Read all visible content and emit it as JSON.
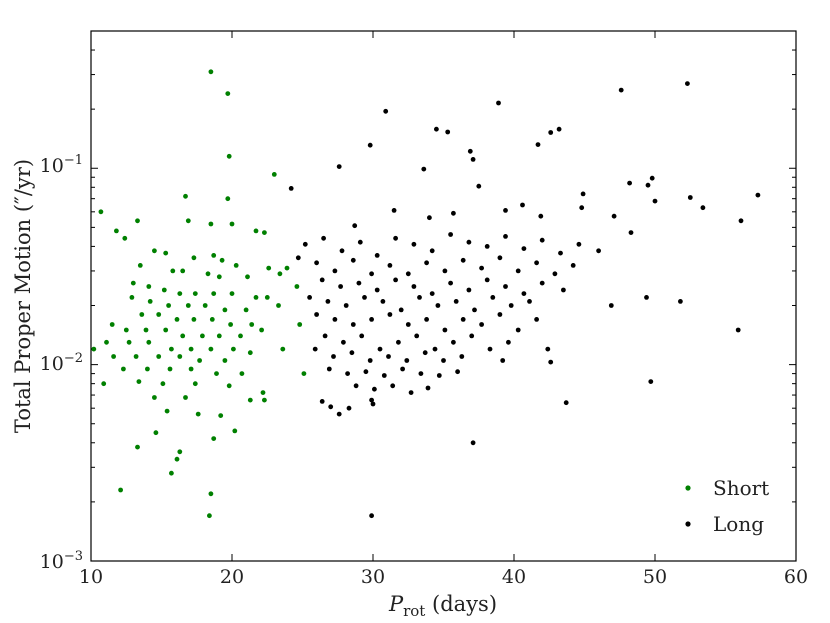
{
  "chart_data": {
    "type": "scatter",
    "title": "",
    "xlabel_main": "P",
    "xlabel_sub": "rot",
    "xlabel_unit": " (days)",
    "ylabel": "Total Proper Motion (″/yr)",
    "xlim": [
      10,
      60
    ],
    "ylim": [
      0.001,
      0.5
    ],
    "yscale": "log",
    "grid": false,
    "legend_position": "lower-right",
    "x_ticks": [
      10,
      20,
      30,
      40,
      50,
      60
    ],
    "x_tick_labels": [
      "10",
      "20",
      "30",
      "40",
      "50",
      "60"
    ],
    "y_ticks": [
      0.001,
      0.01,
      0.1
    ],
    "y_tick_labels": [
      {
        "base": "10",
        "exp": "−3"
      },
      {
        "base": "10",
        "exp": "−2"
      },
      {
        "base": "10",
        "exp": "−1"
      }
    ],
    "series": [
      {
        "name": "Short",
        "color": "#008000",
        "points": [
          [
            18.5,
            0.31
          ],
          [
            19.7,
            0.24
          ],
          [
            19.8,
            0.115
          ],
          [
            16.7,
            0.072
          ],
          [
            19.7,
            0.07
          ],
          [
            23.0,
            0.093
          ],
          [
            10.7,
            0.06
          ],
          [
            11.8,
            0.048
          ],
          [
            12.4,
            0.044
          ],
          [
            13.3,
            0.054
          ],
          [
            16.9,
            0.054
          ],
          [
            18.5,
            0.052
          ],
          [
            20.0,
            0.052
          ],
          [
            21.7,
            0.048
          ],
          [
            22.3,
            0.047
          ],
          [
            14.5,
            0.038
          ],
          [
            15.3,
            0.037
          ],
          [
            17.3,
            0.035
          ],
          [
            18.7,
            0.036
          ],
          [
            19.3,
            0.034
          ],
          [
            20.3,
            0.032
          ],
          [
            13.5,
            0.032
          ],
          [
            15.8,
            0.03
          ],
          [
            16.5,
            0.03
          ],
          [
            18.3,
            0.029
          ],
          [
            19.1,
            0.028
          ],
          [
            21.1,
            0.028
          ],
          [
            22.6,
            0.031
          ],
          [
            23.4,
            0.029
          ],
          [
            23.9,
            0.031
          ],
          [
            13.0,
            0.026
          ],
          [
            14.1,
            0.025
          ],
          [
            15.2,
            0.024
          ],
          [
            16.3,
            0.023
          ],
          [
            17.4,
            0.023
          ],
          [
            18.7,
            0.023
          ],
          [
            20.0,
            0.023
          ],
          [
            21.7,
            0.022
          ],
          [
            22.5,
            0.022
          ],
          [
            24.6,
            0.025
          ],
          [
            12.9,
            0.022
          ],
          [
            14.2,
            0.021
          ],
          [
            15.5,
            0.02
          ],
          [
            16.9,
            0.02
          ],
          [
            18.1,
            0.02
          ],
          [
            19.5,
            0.019
          ],
          [
            21.0,
            0.019
          ],
          [
            23.3,
            0.02
          ],
          [
            13.6,
            0.018
          ],
          [
            14.8,
            0.018
          ],
          [
            16.1,
            0.017
          ],
          [
            17.3,
            0.017
          ],
          [
            18.6,
            0.017
          ],
          [
            19.9,
            0.016
          ],
          [
            21.4,
            0.016
          ],
          [
            11.5,
            0.016
          ],
          [
            12.5,
            0.015
          ],
          [
            13.9,
            0.015
          ],
          [
            15.3,
            0.015
          ],
          [
            16.5,
            0.014
          ],
          [
            17.9,
            0.014
          ],
          [
            19.1,
            0.014
          ],
          [
            20.6,
            0.014
          ],
          [
            22.1,
            0.015
          ],
          [
            24.8,
            0.016
          ],
          [
            11.1,
            0.013
          ],
          [
            12.7,
            0.013
          ],
          [
            14.1,
            0.013
          ],
          [
            15.7,
            0.012
          ],
          [
            17.1,
            0.012
          ],
          [
            18.5,
            0.012
          ],
          [
            20.1,
            0.012
          ],
          [
            23.6,
            0.012
          ],
          [
            10.2,
            0.012
          ],
          [
            11.6,
            0.011
          ],
          [
            13.2,
            0.011
          ],
          [
            14.8,
            0.011
          ],
          [
            16.3,
            0.011
          ],
          [
            17.7,
            0.0105
          ],
          [
            19.5,
            0.0105
          ],
          [
            21.3,
            0.0115
          ],
          [
            12.3,
            0.0095
          ],
          [
            14.0,
            0.0095
          ],
          [
            15.6,
            0.0095
          ],
          [
            17.1,
            0.0095
          ],
          [
            18.9,
            0.009
          ],
          [
            20.7,
            0.009
          ],
          [
            25.1,
            0.009
          ],
          [
            10.9,
            0.008
          ],
          [
            13.4,
            0.0082
          ],
          [
            15.1,
            0.008
          ],
          [
            17.4,
            0.008
          ],
          [
            19.8,
            0.0078
          ],
          [
            22.2,
            0.0072
          ],
          [
            14.5,
            0.0068
          ],
          [
            16.7,
            0.0068
          ],
          [
            21.3,
            0.0066
          ],
          [
            22.3,
            0.0066
          ],
          [
            15.4,
            0.0058
          ],
          [
            17.6,
            0.0056
          ],
          [
            19.2,
            0.0055
          ],
          [
            20.2,
            0.0046
          ],
          [
            14.6,
            0.0045
          ],
          [
            18.7,
            0.0042
          ],
          [
            13.3,
            0.0038
          ],
          [
            16.3,
            0.0036
          ],
          [
            16.1,
            0.0033
          ],
          [
            15.7,
            0.0028
          ],
          [
            12.1,
            0.0023
          ],
          [
            18.5,
            0.0022
          ],
          [
            18.4,
            0.0017
          ]
        ]
      },
      {
        "name": "Long",
        "color": "#000000",
        "points": [
          [
            52.3,
            0.27
          ],
          [
            47.6,
            0.25
          ],
          [
            38.9,
            0.215
          ],
          [
            30.9,
            0.195
          ],
          [
            34.5,
            0.158
          ],
          [
            35.3,
            0.153
          ],
          [
            43.2,
            0.158
          ],
          [
            42.6,
            0.152
          ],
          [
            36.9,
            0.122
          ],
          [
            29.8,
            0.131
          ],
          [
            41.7,
            0.132
          ],
          [
            37.1,
            0.111
          ],
          [
            27.6,
            0.102
          ],
          [
            33.6,
            0.099
          ],
          [
            49.8,
            0.089
          ],
          [
            49.5,
            0.082
          ],
          [
            48.2,
            0.084
          ],
          [
            44.9,
            0.074
          ],
          [
            37.5,
            0.081
          ],
          [
            24.2,
            0.079
          ],
          [
            52.5,
            0.071
          ],
          [
            57.3,
            0.073
          ],
          [
            50.0,
            0.068
          ],
          [
            53.4,
            0.063
          ],
          [
            40.6,
            0.065
          ],
          [
            35.7,
            0.059
          ],
          [
            31.5,
            0.061
          ],
          [
            28.7,
            0.051
          ],
          [
            34.0,
            0.056
          ],
          [
            39.4,
            0.061
          ],
          [
            41.9,
            0.057
          ],
          [
            44.8,
            0.063
          ],
          [
            47.1,
            0.057
          ],
          [
            48.3,
            0.047
          ],
          [
            56.1,
            0.054
          ],
          [
            25.2,
            0.041
          ],
          [
            26.5,
            0.044
          ],
          [
            27.8,
            0.038
          ],
          [
            29.1,
            0.042
          ],
          [
            30.3,
            0.036
          ],
          [
            31.6,
            0.044
          ],
          [
            32.9,
            0.041
          ],
          [
            34.2,
            0.038
          ],
          [
            35.5,
            0.046
          ],
          [
            36.8,
            0.042
          ],
          [
            38.1,
            0.04
          ],
          [
            39.4,
            0.045
          ],
          [
            40.7,
            0.039
          ],
          [
            42.0,
            0.043
          ],
          [
            43.3,
            0.037
          ],
          [
            44.6,
            0.041
          ],
          [
            46.0,
            0.038
          ],
          [
            24.7,
            0.035
          ],
          [
            26.0,
            0.033
          ],
          [
            27.3,
            0.03
          ],
          [
            28.6,
            0.034
          ],
          [
            29.9,
            0.029
          ],
          [
            31.2,
            0.032
          ],
          [
            32.5,
            0.029
          ],
          [
            33.8,
            0.033
          ],
          [
            35.1,
            0.03
          ],
          [
            36.4,
            0.034
          ],
          [
            37.7,
            0.031
          ],
          [
            39.0,
            0.035
          ],
          [
            40.3,
            0.03
          ],
          [
            41.6,
            0.033
          ],
          [
            42.9,
            0.029
          ],
          [
            44.2,
            0.032
          ],
          [
            26.4,
            0.027
          ],
          [
            27.7,
            0.025
          ],
          [
            29.0,
            0.026
          ],
          [
            30.3,
            0.024
          ],
          [
            31.6,
            0.027
          ],
          [
            32.9,
            0.025
          ],
          [
            34.2,
            0.023
          ],
          [
            35.5,
            0.026
          ],
          [
            36.8,
            0.024
          ],
          [
            38.1,
            0.027
          ],
          [
            39.4,
            0.025
          ],
          [
            40.7,
            0.023
          ],
          [
            42.0,
            0.026
          ],
          [
            43.5,
            0.024
          ],
          [
            25.5,
            0.022
          ],
          [
            26.8,
            0.021
          ],
          [
            28.1,
            0.02
          ],
          [
            29.4,
            0.022
          ],
          [
            30.7,
            0.021
          ],
          [
            32.0,
            0.019
          ],
          [
            33.3,
            0.022
          ],
          [
            34.6,
            0.02
          ],
          [
            35.9,
            0.021
          ],
          [
            37.2,
            0.019
          ],
          [
            38.5,
            0.022
          ],
          [
            39.8,
            0.02
          ],
          [
            41.1,
            0.021
          ],
          [
            46.9,
            0.02
          ],
          [
            49.4,
            0.022
          ],
          [
            51.8,
            0.021
          ],
          [
            26.0,
            0.018
          ],
          [
            27.3,
            0.017
          ],
          [
            28.6,
            0.016
          ],
          [
            29.9,
            0.017
          ],
          [
            31.2,
            0.018
          ],
          [
            32.5,
            0.016
          ],
          [
            33.8,
            0.017
          ],
          [
            35.1,
            0.015
          ],
          [
            36.4,
            0.017
          ],
          [
            37.7,
            0.016
          ],
          [
            39.0,
            0.018
          ],
          [
            40.3,
            0.015
          ],
          [
            41.6,
            0.017
          ],
          [
            55.9,
            0.015
          ],
          [
            26.6,
            0.014
          ],
          [
            27.9,
            0.013
          ],
          [
            29.2,
            0.014
          ],
          [
            30.5,
            0.012
          ],
          [
            31.8,
            0.013
          ],
          [
            33.1,
            0.014
          ],
          [
            34.4,
            0.012
          ],
          [
            35.7,
            0.013
          ],
          [
            37.0,
            0.014
          ],
          [
            38.3,
            0.012
          ],
          [
            39.6,
            0.013
          ],
          [
            42.4,
            0.012
          ],
          [
            25.9,
            0.012
          ],
          [
            27.2,
            0.011
          ],
          [
            28.5,
            0.0115
          ],
          [
            29.8,
            0.0105
          ],
          [
            31.1,
            0.011
          ],
          [
            32.4,
            0.0105
          ],
          [
            33.7,
            0.0115
          ],
          [
            35.0,
            0.0105
          ],
          [
            36.3,
            0.011
          ],
          [
            39.2,
            0.0105
          ],
          [
            42.6,
            0.0103
          ],
          [
            26.9,
            0.0095
          ],
          [
            28.2,
            0.009
          ],
          [
            29.5,
            0.0092
          ],
          [
            30.8,
            0.0088
          ],
          [
            32.1,
            0.0095
          ],
          [
            33.4,
            0.009
          ],
          [
            34.7,
            0.0088
          ],
          [
            36.0,
            0.0092
          ],
          [
            28.8,
            0.0078
          ],
          [
            30.1,
            0.0075
          ],
          [
            31.4,
            0.0078
          ],
          [
            32.7,
            0.0072
          ],
          [
            33.9,
            0.0076
          ],
          [
            49.7,
            0.0082
          ],
          [
            26.4,
            0.0065
          ],
          [
            27.0,
            0.0061
          ],
          [
            27.6,
            0.0056
          ],
          [
            28.3,
            0.006
          ],
          [
            29.9,
            0.0066
          ],
          [
            30.0,
            0.0063
          ],
          [
            43.7,
            0.0064
          ],
          [
            37.1,
            0.004
          ],
          [
            29.9,
            0.0017
          ]
        ]
      }
    ]
  }
}
